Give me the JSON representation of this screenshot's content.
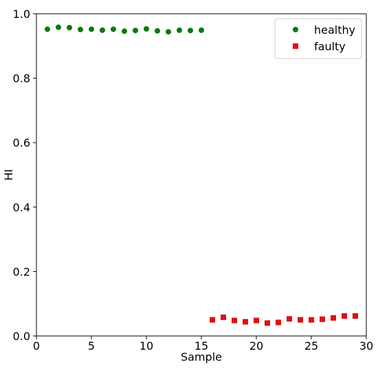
{
  "chart_data": {
    "type": "scatter",
    "title": "",
    "xlabel": "Sample",
    "ylabel": "HI",
    "xlim": [
      0,
      30
    ],
    "ylim": [
      0,
      1.0
    ],
    "xticks": [
      "0",
      "5",
      "10",
      "15",
      "20",
      "25",
      "30"
    ],
    "yticks": [
      "0.0",
      "0.2",
      "0.4",
      "0.6",
      "0.8",
      "1.0"
    ],
    "grid": false,
    "legend_position": "top-right",
    "series": [
      {
        "name": "healthy",
        "marker": "circle",
        "color": "#0a7a0a",
        "x": [
          1,
          2,
          3,
          4,
          5,
          6,
          7,
          8,
          9,
          10,
          11,
          12,
          13,
          14,
          15
        ],
        "y": [
          0.952,
          0.958,
          0.957,
          0.951,
          0.952,
          0.949,
          0.952,
          0.946,
          0.948,
          0.953,
          0.947,
          0.944,
          0.949,
          0.948,
          0.949
        ]
      },
      {
        "name": "faulty",
        "marker": "square",
        "color": "#e01010",
        "x": [
          16,
          17,
          18,
          19,
          20,
          21,
          22,
          23,
          24,
          25,
          26,
          27,
          28,
          29
        ],
        "y": [
          0.05,
          0.058,
          0.048,
          0.044,
          0.048,
          0.04,
          0.042,
          0.053,
          0.05,
          0.05,
          0.052,
          0.056,
          0.062,
          0.062
        ]
      }
    ]
  }
}
